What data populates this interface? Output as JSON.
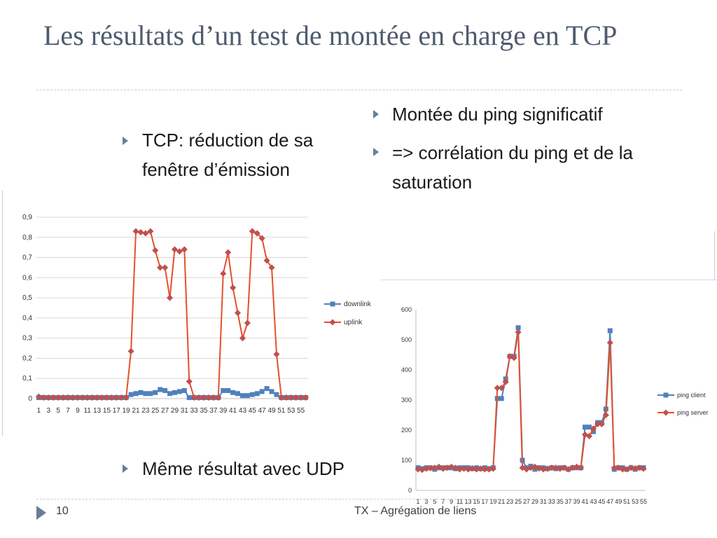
{
  "slide": {
    "title": "Les résultats d’un test de montée en charge en TCP",
    "page_number": "10",
    "footer": "TX – Agrégation de liens",
    "bullets_right": [
      "Montée du ping significatif",
      "=> corrélation du ping et de la saturation"
    ],
    "bullet_left_top": "TCP: réduction de sa fenêtre d’émission",
    "bullet_left_bottom": "Même résultat avec UDP"
  },
  "colors": {
    "blue": "#4f81bd",
    "red": "#e4502b",
    "marker_red": "#c0504d",
    "text": "#1a1a1a",
    "title": "#4e5b6e",
    "accent": "#6b7d95"
  },
  "chart_data": [
    {
      "type": "line",
      "title": "",
      "xlabel": "",
      "ylabel": "",
      "x": [
        1,
        2,
        3,
        4,
        5,
        6,
        7,
        8,
        9,
        10,
        11,
        12,
        13,
        14,
        15,
        16,
        17,
        18,
        19,
        20,
        21,
        22,
        23,
        24,
        25,
        26,
        27,
        28,
        29,
        30,
        31,
        32,
        33,
        34,
        35,
        36,
        37,
        38,
        39,
        40,
        41,
        42,
        43,
        44,
        45,
        46,
        47,
        48,
        49,
        50,
        51,
        52,
        53,
        54,
        55,
        56
      ],
      "x_tick_labels": [
        "1",
        "3",
        "5",
        "7",
        "9",
        "11",
        "13",
        "15",
        "17",
        "19",
        "21",
        "23",
        "25",
        "27",
        "29",
        "31",
        "33",
        "35",
        "37",
        "39",
        "41",
        "43",
        "45",
        "47",
        "49",
        "51",
        "53",
        "55"
      ],
      "ylim": [
        0,
        0.9
      ],
      "y_ticks": [
        "0",
        "0,1",
        "0,2",
        "0,3",
        "0,4",
        "0,5",
        "0,6",
        "0,7",
        "0,8",
        "0,9"
      ],
      "grid": true,
      "legend": "right",
      "series": [
        {
          "name": "downlink",
          "color": "#4f81bd",
          "marker": "square",
          "values": [
            0.005,
            0.005,
            0.005,
            0.005,
            0.005,
            0.005,
            0.005,
            0.005,
            0.005,
            0.005,
            0.005,
            0.005,
            0.005,
            0.005,
            0.005,
            0.005,
            0.005,
            0.005,
            0.005,
            0.02,
            0.025,
            0.03,
            0.025,
            0.025,
            0.03,
            0.045,
            0.04,
            0.025,
            0.03,
            0.035,
            0.04,
            0.005,
            0.005,
            0.005,
            0.005,
            0.005,
            0.005,
            0.005,
            0.04,
            0.04,
            0.03,
            0.025,
            0.015,
            0.015,
            0.02,
            0.025,
            0.035,
            0.05,
            0.035,
            0.02,
            0.005,
            0.005,
            0.005,
            0.005,
            0.005,
            0.005
          ]
        },
        {
          "name": "uplink",
          "color": "#e4502b",
          "marker": "diamond",
          "values": [
            0.01,
            0.005,
            0.005,
            0.005,
            0.005,
            0.005,
            0.005,
            0.005,
            0.005,
            0.005,
            0.005,
            0.005,
            0.005,
            0.005,
            0.005,
            0.005,
            0.005,
            0.005,
            0.005,
            0.235,
            0.83,
            0.825,
            0.82,
            0.83,
            0.735,
            0.65,
            0.65,
            0.5,
            0.74,
            0.73,
            0.74,
            0.085,
            0.005,
            0.005,
            0.005,
            0.005,
            0.005,
            0.005,
            0.62,
            0.725,
            0.55,
            0.425,
            0.3,
            0.375,
            0.83,
            0.82,
            0.795,
            0.685,
            0.65,
            0.22,
            0.005,
            0.005,
            0.005,
            0.005,
            0.005,
            0.005
          ]
        }
      ]
    },
    {
      "type": "line",
      "title": "",
      "xlabel": "",
      "ylabel": "",
      "x": [
        1,
        2,
        3,
        4,
        5,
        6,
        7,
        8,
        9,
        10,
        11,
        12,
        13,
        14,
        15,
        16,
        17,
        18,
        19,
        20,
        21,
        22,
        23,
        24,
        25,
        26,
        27,
        28,
        29,
        30,
        31,
        32,
        33,
        34,
        35,
        36,
        37,
        38,
        39,
        40,
        41,
        42,
        43,
        44,
        45,
        46,
        47,
        48,
        49,
        50,
        51,
        52,
        53,
        54,
        55
      ],
      "x_tick_labels": [
        "1",
        "3",
        "5",
        "7",
        "9",
        "11",
        "13",
        "15",
        "17",
        "19",
        "21",
        "23",
        "25",
        "27",
        "29",
        "31",
        "33",
        "35",
        "37",
        "39",
        "41",
        "43",
        "45",
        "47",
        "49",
        "51",
        "53",
        "55"
      ],
      "ylim": [
        0,
        600
      ],
      "y_ticks": [
        "0",
        "100",
        "200",
        "300",
        "400",
        "500",
        "600"
      ],
      "grid": false,
      "legend": "right",
      "series": [
        {
          "name": "ping client",
          "color": "#4f81bd",
          "marker": "square",
          "values": [
            75,
            72,
            75,
            75,
            70,
            75,
            75,
            75,
            75,
            72,
            75,
            75,
            75,
            72,
            75,
            72,
            75,
            72,
            75,
            305,
            305,
            370,
            445,
            445,
            540,
            100,
            75,
            80,
            70,
            75,
            75,
            72,
            75,
            72,
            75,
            75,
            70,
            75,
            75,
            75,
            210,
            210,
            195,
            225,
            225,
            270,
            530,
            70,
            75,
            75,
            70,
            75,
            70,
            75,
            75
          ]
        },
        {
          "name": "ping server",
          "color": "#e4502b",
          "marker": "diamond",
          "values": [
            70,
            68,
            72,
            74,
            75,
            78,
            72,
            75,
            78,
            75,
            70,
            72,
            70,
            73,
            70,
            72,
            70,
            70,
            72,
            340,
            340,
            360,
            445,
            440,
            525,
            75,
            70,
            75,
            78,
            73,
            70,
            72,
            75,
            75,
            72,
            75,
            70,
            75,
            78,
            75,
            185,
            180,
            205,
            220,
            220,
            250,
            490,
            75,
            75,
            70,
            70,
            75,
            73,
            75,
            72
          ]
        }
      ]
    }
  ]
}
